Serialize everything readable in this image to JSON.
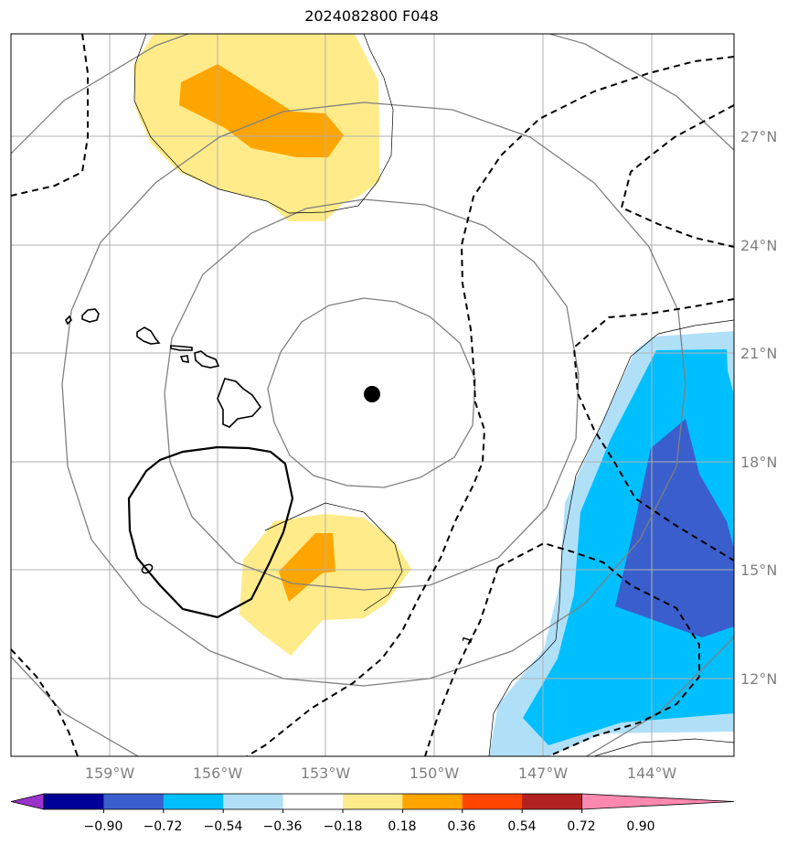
{
  "title": "2024082800 F048",
  "lat_labels": [
    "27°N",
    "24°N",
    "21°N",
    "18°N",
    "15°N",
    "12°N"
  ],
  "lon_labels": [
    "159°W",
    "156°W",
    "153°W",
    "150°W",
    "147°W",
    "144°W"
  ],
  "contour_label": "1",
  "island_label": "0",
  "colorbar": {
    "ticks": [
      "−0.90",
      "−0.72",
      "−0.54",
      "−0.36",
      "−0.18",
      "0.18",
      "0.36",
      "0.54",
      "0.72",
      "0.90"
    ],
    "colors": [
      "#9933cc",
      "#000099",
      "#3a5fcd",
      "#00bfff",
      "#b0e0f8",
      "#ffffff",
      "#ffeb8a",
      "#ffa500",
      "#ff4500",
      "#b22222",
      "#ff88b0"
    ]
  },
  "colors": {
    "yellow": "#ffeb8a",
    "orange": "#ffa500",
    "light_blue": "#b0e0f8",
    "sky_blue": "#00bfff",
    "royal_blue": "#3a5fcd",
    "grid": "#b0b0b0",
    "range_rings": "#808080"
  },
  "storm_center_marker": "filled-circle"
}
